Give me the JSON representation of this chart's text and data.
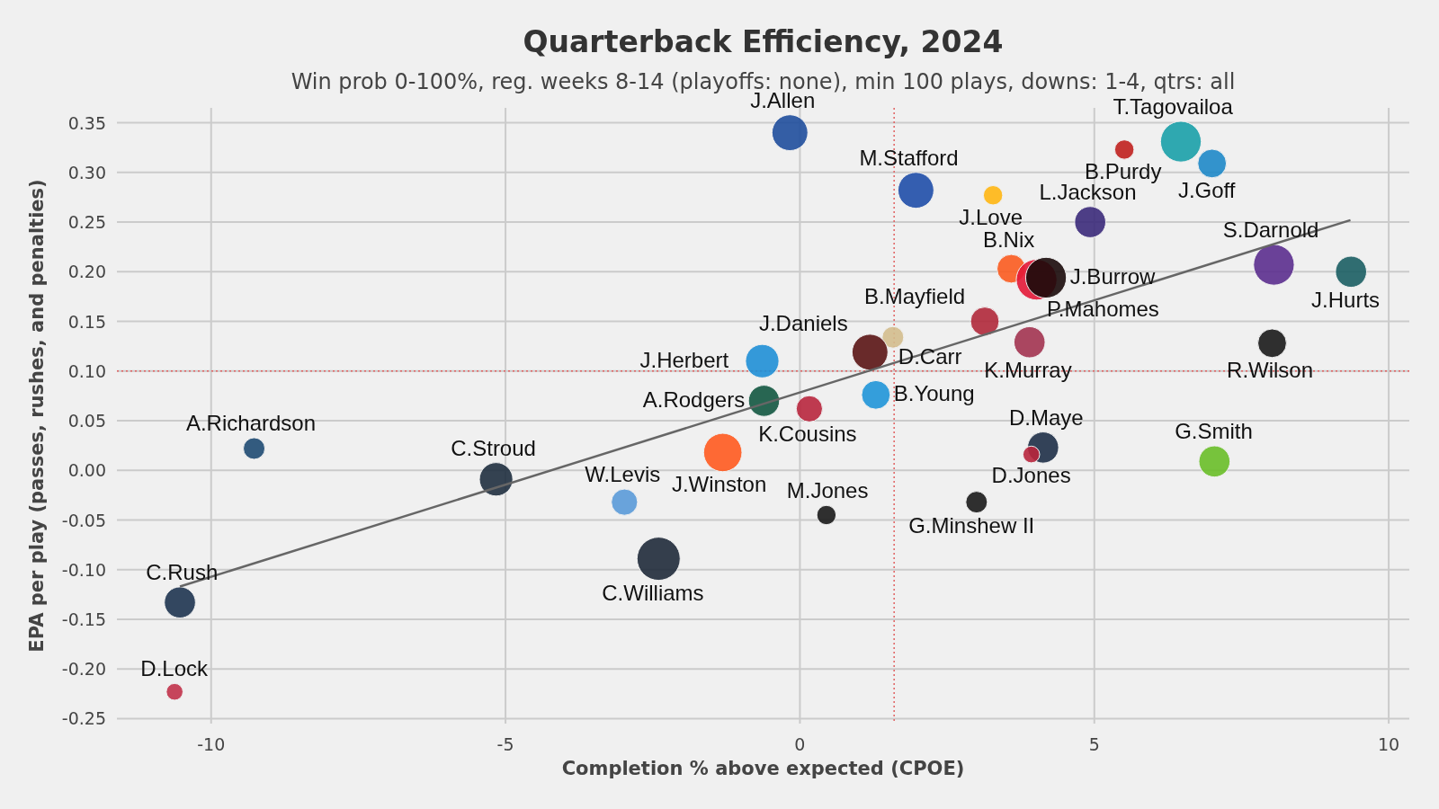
{
  "chart_data": {
    "type": "bubble",
    "title": "Quarterback Efficiency, 2024",
    "subtitle": "Win prob 0-100%, reg. weeks 8-14 (playoffs: none), min 100 plays, downs: 1-4, qtrs: all",
    "xlabel": "Completion % above expected (CPOE)",
    "ylabel": "EPA per play (passes, rushes, and penalties)",
    "xlim": [
      -11.6,
      10.35
    ],
    "ylim": [
      -0.255,
      0.365
    ],
    "xticks": [
      -10,
      -5,
      0,
      5,
      10
    ],
    "yticks": [
      {
        "value": -0.25,
        "label": "-0.25"
      },
      {
        "value": -0.2,
        "label": "-0.20"
      },
      {
        "value": -0.15,
        "label": "-0.15"
      },
      {
        "value": -0.1,
        "label": "-0.10"
      },
      {
        "value": -0.05,
        "label": "-0.05"
      },
      {
        "value": 0,
        "label": "0.00"
      },
      {
        "value": 0.05,
        "label": "0.05"
      },
      {
        "value": 0.1,
        "label": "0.10"
      },
      {
        "value": 0.15,
        "label": "0.15"
      },
      {
        "value": 0.2,
        "label": "0.20"
      },
      {
        "value": 0.25,
        "label": "0.25"
      },
      {
        "value": 0.3,
        "label": "0.30"
      },
      {
        "value": 0.35,
        "label": "0.35"
      }
    ],
    "grid": true,
    "ref_lines": [
      {
        "axis": "x",
        "value": 1.6,
        "color": "#e06060",
        "line_style": "dotted"
      },
      {
        "axis": "y",
        "value": 0.1,
        "color": "#e06060",
        "line_style": "dotted"
      }
    ],
    "series": [
      {
        "type": "bubble",
        "x": [
          -0.17,
          1.97,
          3.28,
          5.51,
          6.47,
          7.0,
          4.93,
          8.05,
          9.36,
          8.02,
          3.59,
          4.02,
          4.18,
          3.14,
          1.58,
          3.9,
          1.19,
          -0.64,
          -0.61,
          0.16,
          1.29,
          -9.27,
          -5.16,
          -1.31,
          4.13,
          3.93,
          7.04,
          3.0,
          -2.98,
          0.45,
          -2.4,
          -10.53,
          -10.62
        ],
        "values": [
          0.34,
          0.282,
          0.277,
          0.323,
          0.331,
          0.309,
          0.25,
          0.207,
          0.2,
          0.128,
          0.203,
          0.192,
          0.194,
          0.15,
          0.134,
          0.129,
          0.119,
          0.11,
          0.07,
          0.062,
          0.076,
          0.022,
          -0.009,
          0.018,
          0.023,
          0.016,
          0.009,
          -0.032,
          -0.032,
          -0.045,
          -0.089,
          -0.133,
          -0.223
        ],
        "sizes": [
          0.69,
          0.69,
          0.2,
          0.2,
          0.89,
          0.44,
          0.52,
          0.89,
          0.52,
          0.44,
          0.44,
          0.89,
          0.89,
          0.44,
          0.25,
          0.52,
          0.69,
          0.6,
          0.52,
          0.37,
          0.44,
          0.25,
          0.6,
          0.79,
          0.52,
          0.15,
          0.52,
          0.25,
          0.37,
          0.2,
          1,
          0.52,
          0.15
        ],
        "colors": [
          "#1f4e9c",
          "#1f4ea8",
          "#ffb612",
          "#c0201e",
          "#1aa0a8",
          "#1e88c8",
          "#3b2a7a",
          "#5b2d8e",
          "#1b5e63",
          "#1a1a1a",
          "#fb5b1f",
          "#e31837",
          "#1a0a0a",
          "#b0283a",
          "#d3bc8d",
          "#a23350",
          "#5a1414",
          "#1f8fd6",
          "#125740",
          "#b8263d",
          "#1f95d8",
          "#1e4a72",
          "#1f2f3f",
          "#ff5a1f",
          "#1e2f47",
          "#b8263d",
          "#69be28",
          "#1a1a1a",
          "#5a9ad8",
          "#1a1a1a",
          "#1f2a3a",
          "#1e3450",
          "#c1324a"
        ]
      },
      {
        "type": "line",
        "x": [
          -10.53,
          9.35
        ],
        "values": [
          -0.117,
          0.252
        ],
        "color": "#666666"
      }
    ],
    "annotations": [
      {
        "text": "J.Allen",
        "x": -0.17,
        "y": 0.34
      },
      {
        "text": "M.Stafford",
        "x": 1.97,
        "y": 0.282
      },
      {
        "text": "J.Love",
        "x": 3.28,
        "y": 0.277
      },
      {
        "text": "B.Purdy",
        "x": 5.51,
        "y": 0.323
      },
      {
        "text": "T.Tagovailoa",
        "x": 6.47,
        "y": 0.331
      },
      {
        "text": "J.Goff",
        "x": 7.0,
        "y": 0.309
      },
      {
        "text": "L.Jackson",
        "x": 4.93,
        "y": 0.25
      },
      {
        "text": "S.Darnold",
        "x": 8.05,
        "y": 0.207
      },
      {
        "text": "J.Hurts",
        "x": 9.36,
        "y": 0.2
      },
      {
        "text": "R.Wilson",
        "x": 8.02,
        "y": 0.128
      },
      {
        "text": "B.Nix",
        "x": 3.59,
        "y": 0.203
      },
      {
        "text": "P.Mahomes",
        "x": 4.02,
        "y": 0.192
      },
      {
        "text": "J.Burrow",
        "x": 4.18,
        "y": 0.194
      },
      {
        "text": "B.Mayfield",
        "x": 3.14,
        "y": 0.15
      },
      {
        "text": "D.Carr",
        "x": 1.58,
        "y": 0.134
      },
      {
        "text": "K.Murray",
        "x": 3.9,
        "y": 0.129
      },
      {
        "text": "J.Daniels",
        "x": 1.19,
        "y": 0.119
      },
      {
        "text": "J.Herbert",
        "x": -0.64,
        "y": 0.11
      },
      {
        "text": "A.Rodgers",
        "x": -0.61,
        "y": 0.07
      },
      {
        "text": "K.Cousins",
        "x": 0.16,
        "y": 0.062
      },
      {
        "text": "B.Young",
        "x": 1.29,
        "y": 0.076
      },
      {
        "text": "A.Richardson",
        "x": -9.27,
        "y": 0.022
      },
      {
        "text": "C.Stroud",
        "x": -5.16,
        "y": -0.009
      },
      {
        "text": "J.Winston",
        "x": -1.31,
        "y": 0.018
      },
      {
        "text": "D.Maye",
        "x": 4.13,
        "y": 0.023
      },
      {
        "text": "D.Jones",
        "x": 3.93,
        "y": 0.016
      },
      {
        "text": "G.Smith",
        "x": 7.04,
        "y": 0.009
      },
      {
        "text": "G.Minshew II",
        "x": 3.0,
        "y": -0.032
      },
      {
        "text": "W.Levis",
        "x": -2.98,
        "y": -0.032
      },
      {
        "text": "M.Jones",
        "x": 0.45,
        "y": -0.045
      },
      {
        "text": "C.Williams",
        "x": -2.4,
        "y": -0.089
      },
      {
        "text": "C.Rush",
        "x": -10.53,
        "y": -0.133
      },
      {
        "text": "D.Lock",
        "x": -10.62,
        "y": -0.223
      }
    ]
  }
}
